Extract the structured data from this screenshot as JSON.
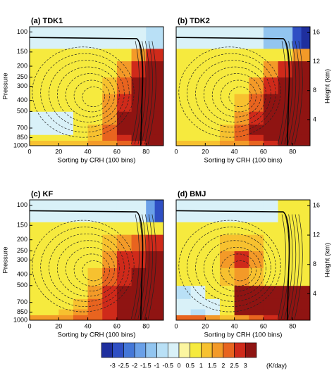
{
  "chart_data": [
    {
      "type": "heatmap",
      "title": "(a) TDK1",
      "xlabel": "Sorting by CRH (100 bins)",
      "ylabel": "Pressure",
      "xlim": [
        0,
        92
      ],
      "xticks": [
        0,
        20,
        40,
        60,
        80
      ],
      "ylim": [
        1000,
        90
      ],
      "ylog": true,
      "yticks": [
        100,
        150,
        200,
        250,
        300,
        400,
        500,
        700,
        850,
        1000
      ],
      "x_edges": [
        0,
        10,
        20,
        30,
        40,
        50,
        60,
        70,
        80,
        86,
        92
      ],
      "y_edges": [
        1000,
        900,
        800,
        650,
        500,
        350,
        250,
        180,
        140,
        90
      ],
      "values": [
        [
          1.2,
          1.2,
          1.2,
          1.2,
          1.5,
          1.8,
          2.2,
          2.7,
          3.5,
          3.5
        ],
        [
          0.7,
          0.7,
          0.7,
          0.7,
          1.2,
          2.2,
          2.7,
          3.5,
          3.5,
          3.5
        ],
        [
          -0.3,
          -0.3,
          -0.3,
          0.7,
          1.2,
          2.2,
          3.5,
          3.5,
          3.5,
          3.5
        ],
        [
          -0.3,
          -0.3,
          -0.3,
          0.7,
          0.7,
          1.7,
          3.5,
          3.5,
          3.5,
          3.5
        ],
        [
          0.7,
          0.7,
          0.7,
          0.7,
          0.7,
          1.7,
          2.7,
          3.5,
          3.5,
          3.5
        ],
        [
          0.7,
          0.7,
          0.7,
          0.7,
          0.7,
          1.2,
          2.2,
          3.5,
          3.5,
          3.5
        ],
        [
          0.7,
          0.7,
          0.7,
          0.7,
          0.7,
          0.7,
          1.7,
          2.7,
          3.5,
          3.5
        ],
        [
          0.7,
          0.7,
          0.7,
          0.7,
          0.7,
          0.7,
          0.7,
          1.7,
          2.7,
          2.7
        ],
        [
          -0.3,
          -0.3,
          -0.3,
          -0.3,
          -0.3,
          -0.3,
          -0.3,
          -0.3,
          -0.7,
          -0.7
        ]
      ]
    },
    {
      "type": "heatmap",
      "title": "(b) TDK2",
      "xlabel": "Sorting by CRH (100 bins)",
      "y2label": "Height (km)",
      "xlim": [
        0,
        92
      ],
      "xticks": [
        0,
        20,
        40,
        60,
        80
      ],
      "ylim": [
        1000,
        90
      ],
      "ylog": true,
      "y2lim": [
        0.4,
        16.8
      ],
      "y2ticks": [
        4,
        8,
        12,
        16
      ],
      "x_edges": [
        0,
        10,
        20,
        30,
        40,
        50,
        60,
        70,
        80,
        86,
        92
      ],
      "y_edges": [
        1000,
        900,
        800,
        650,
        500,
        350,
        250,
        180,
        140,
        90
      ],
      "values": [
        [
          1.2,
          1.2,
          1.2,
          1.5,
          1.8,
          2.2,
          2.7,
          3.5,
          3.5,
          3.5
        ],
        [
          0.7,
          0.7,
          0.7,
          1.2,
          2.2,
          2.7,
          3.5,
          3.5,
          3.5,
          3.5
        ],
        [
          0.7,
          0.7,
          0.7,
          1.2,
          2.2,
          3.5,
          3.5,
          3.5,
          3.5,
          3.5
        ],
        [
          0.7,
          0.7,
          0.7,
          0.7,
          1.7,
          2.7,
          3.5,
          3.5,
          3.5,
          3.5
        ],
        [
          0.7,
          0.7,
          0.7,
          0.7,
          1.2,
          2.2,
          3.5,
          3.5,
          3.5,
          3.5
        ],
        [
          0.7,
          0.7,
          0.7,
          0.7,
          0.7,
          1.7,
          2.7,
          3.5,
          3.5,
          3.5
        ],
        [
          0.7,
          0.7,
          0.7,
          0.7,
          0.7,
          0.7,
          1.7,
          2.7,
          3.5,
          3.5
        ],
        [
          0.7,
          0.7,
          0.7,
          0.7,
          0.7,
          0.7,
          0.7,
          0.7,
          1.7,
          1.7
        ],
        [
          -0.3,
          -0.3,
          -0.3,
          -0.3,
          -0.3,
          -0.3,
          -1.2,
          -1.2,
          -2.7,
          -3.5
        ]
      ]
    },
    {
      "type": "heatmap",
      "title": "(c) KF",
      "xlabel": "Sorting by CRH (100 bins)",
      "ylabel": "Pressure",
      "xlim": [
        0,
        92
      ],
      "xticks": [
        0,
        20,
        40,
        60,
        80
      ],
      "ylim": [
        1000,
        90
      ],
      "ylog": true,
      "yticks": [
        100,
        150,
        200,
        250,
        300,
        400,
        500,
        700,
        850,
        1000
      ],
      "x_edges": [
        0,
        10,
        20,
        30,
        40,
        50,
        60,
        70,
        80,
        86,
        92
      ],
      "y_edges": [
        1000,
        900,
        800,
        650,
        500,
        350,
        250,
        180,
        140,
        90
      ],
      "values": [
        [
          1.7,
          1.7,
          1.7,
          2.2,
          2.2,
          2.7,
          3.5,
          3.5,
          3.5,
          3.5
        ],
        [
          0.7,
          0.7,
          1.2,
          1.7,
          2.2,
          2.7,
          3.5,
          3.5,
          3.5,
          3.5
        ],
        [
          0.7,
          0.7,
          0.7,
          1.2,
          2.2,
          2.7,
          3.5,
          3.5,
          3.5,
          3.5
        ],
        [
          0.7,
          0.7,
          0.7,
          0.7,
          1.7,
          2.7,
          3.5,
          3.5,
          3.5,
          3.5
        ],
        [
          0.7,
          0.7,
          0.7,
          0.7,
          1.2,
          2.2,
          2.7,
          3.5,
          3.5,
          3.5
        ],
        [
          0.7,
          0.7,
          0.7,
          0.7,
          0.7,
          1.7,
          2.7,
          2.7,
          3.5,
          3.5
        ],
        [
          0.7,
          0.7,
          0.7,
          0.7,
          0.7,
          1.2,
          1.7,
          2.2,
          2.7,
          2.7
        ],
        [
          0.7,
          0.7,
          0.7,
          0.7,
          0.7,
          0.7,
          0.7,
          0.7,
          0.7,
          0.7
        ],
        [
          -0.3,
          -0.3,
          -0.3,
          -0.3,
          -0.3,
          -0.3,
          -0.3,
          -0.3,
          -1.7,
          -2.7
        ]
      ]
    },
    {
      "type": "heatmap",
      "title": "(d) BMJ",
      "xlabel": "Sorting by CRH (100 bins)",
      "y2label": "Height (km)",
      "xlim": [
        0,
        92
      ],
      "xticks": [
        0,
        20,
        40,
        60,
        80
      ],
      "ylim": [
        1000,
        90
      ],
      "ylog": true,
      "y2lim": [
        0.4,
        16.8
      ],
      "y2ticks": [
        4,
        8,
        12,
        16
      ],
      "x_edges": [
        0,
        10,
        20,
        30,
        40,
        50,
        60,
        70,
        80,
        86,
        92
      ],
      "y_edges": [
        1000,
        900,
        800,
        650,
        500,
        350,
        250,
        180,
        140,
        90
      ],
      "values": [
        [
          2.2,
          2.2,
          1.7,
          1.2,
          1.7,
          2.2,
          2.7,
          3.5,
          3.5,
          3.5
        ],
        [
          -0.3,
          -0.7,
          -0.3,
          0.7,
          3.5,
          3.5,
          3.5,
          3.5,
          3.5,
          3.5
        ],
        [
          -0.3,
          -0.3,
          -0.3,
          0.7,
          3.5,
          3.5,
          3.5,
          3.5,
          3.5,
          3.5
        ],
        [
          -0.7,
          -0.3,
          0.7,
          0.7,
          3.5,
          3.5,
          3.5,
          3.5,
          3.5,
          3.5
        ],
        [
          0.7,
          0.7,
          0.7,
          1.2,
          1.7,
          1.2,
          0.7,
          0.7,
          0.7,
          0.7
        ],
        [
          0.7,
          0.7,
          0.7,
          1.7,
          2.7,
          1.7,
          0.7,
          0.7,
          0.7,
          0.7
        ],
        [
          0.7,
          0.7,
          0.7,
          1.2,
          1.2,
          1.2,
          0.7,
          0.7,
          0.7,
          0.7
        ],
        [
          0.7,
          0.7,
          0.7,
          0.7,
          0.7,
          0.7,
          0.7,
          0.7,
          0.7,
          0.7
        ],
        [
          -0.3,
          -0.3,
          -0.3,
          -0.3,
          -0.3,
          -0.3,
          -0.3,
          0.7,
          0.7,
          0.7
        ]
      ]
    }
  ],
  "colorbar": {
    "label": "(K/day)",
    "levels": [
      -3,
      -2.5,
      -2,
      -1.5,
      -1,
      -0.5,
      0,
      0.5,
      1,
      1.5,
      2,
      2.5,
      3
    ],
    "colors": [
      "#1f2f9e",
      "#2f4fc4",
      "#4477d8",
      "#6aa0e8",
      "#92c5f0",
      "#b9e0f6",
      "#d9f1f8",
      "#fbf5a0",
      "#f6ea3e",
      "#f7c12f",
      "#f39a28",
      "#e8641f",
      "#cf2a1a",
      "#8f1412"
    ]
  }
}
